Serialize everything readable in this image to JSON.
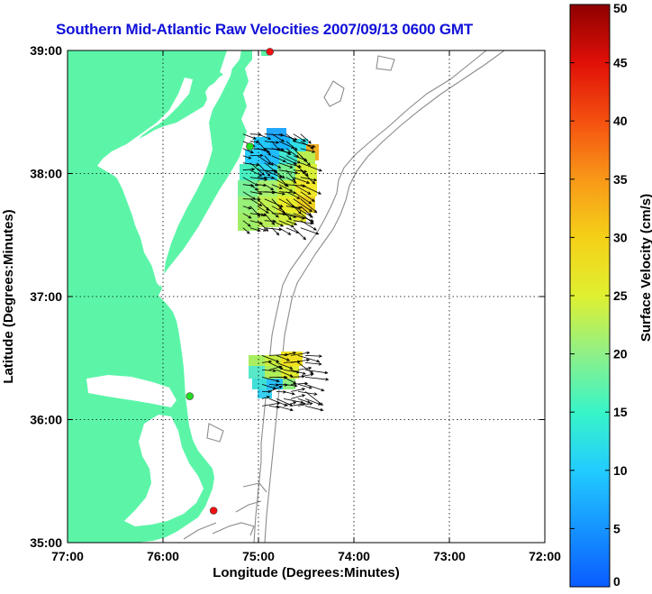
{
  "title": "Southern Mid-Atlantic Raw Velocities 2007/09/13 0600 GMT",
  "axes": {
    "xlabel": "Longitude (Degrees:Minutes)",
    "ylabel": "Latitude (Degrees:Minutes)",
    "x_ticks": [
      "77:00",
      "76:00",
      "75:00",
      "74:00",
      "73:00",
      "72:00"
    ],
    "y_ticks": [
      "39:00",
      "38:00",
      "37:00",
      "36:00",
      "35:00"
    ],
    "xlim": [
      -77,
      -72
    ],
    "ylim": [
      35,
      39
    ],
    "grid": "dotted"
  },
  "colorbar": {
    "label": "Surface Velocity (cm/s)",
    "ticks": [
      "0",
      "5",
      "10",
      "15",
      "20",
      "25",
      "30",
      "35",
      "40",
      "45",
      "50"
    ],
    "range": [
      0,
      50
    ],
    "colormap": "jet"
  },
  "colors": {
    "land": "#5cf5a8",
    "title": "#1010d8",
    "bathymetry": "#8c8c8c",
    "station_green": "#22dd22",
    "station_red": "#ee1111"
  },
  "stations": [
    {
      "lon": -74.88,
      "lat": 38.99,
      "color": "red"
    },
    {
      "lon": -75.09,
      "lat": 38.22,
      "color": "green"
    },
    {
      "lon": -75.72,
      "lat": 36.19,
      "color": "green"
    },
    {
      "lon": -75.47,
      "lat": 35.26,
      "color": "red"
    }
  ],
  "velocity_regions": [
    {
      "name": "northern",
      "lon_range": [
        -75.2,
        -74.5
      ],
      "lat_range": [
        37.55,
        38.35
      ]
    },
    {
      "name": "southern",
      "lon_range": [
        -75.0,
        -74.5
      ],
      "lat_range": [
        36.1,
        36.55
      ]
    }
  ]
}
